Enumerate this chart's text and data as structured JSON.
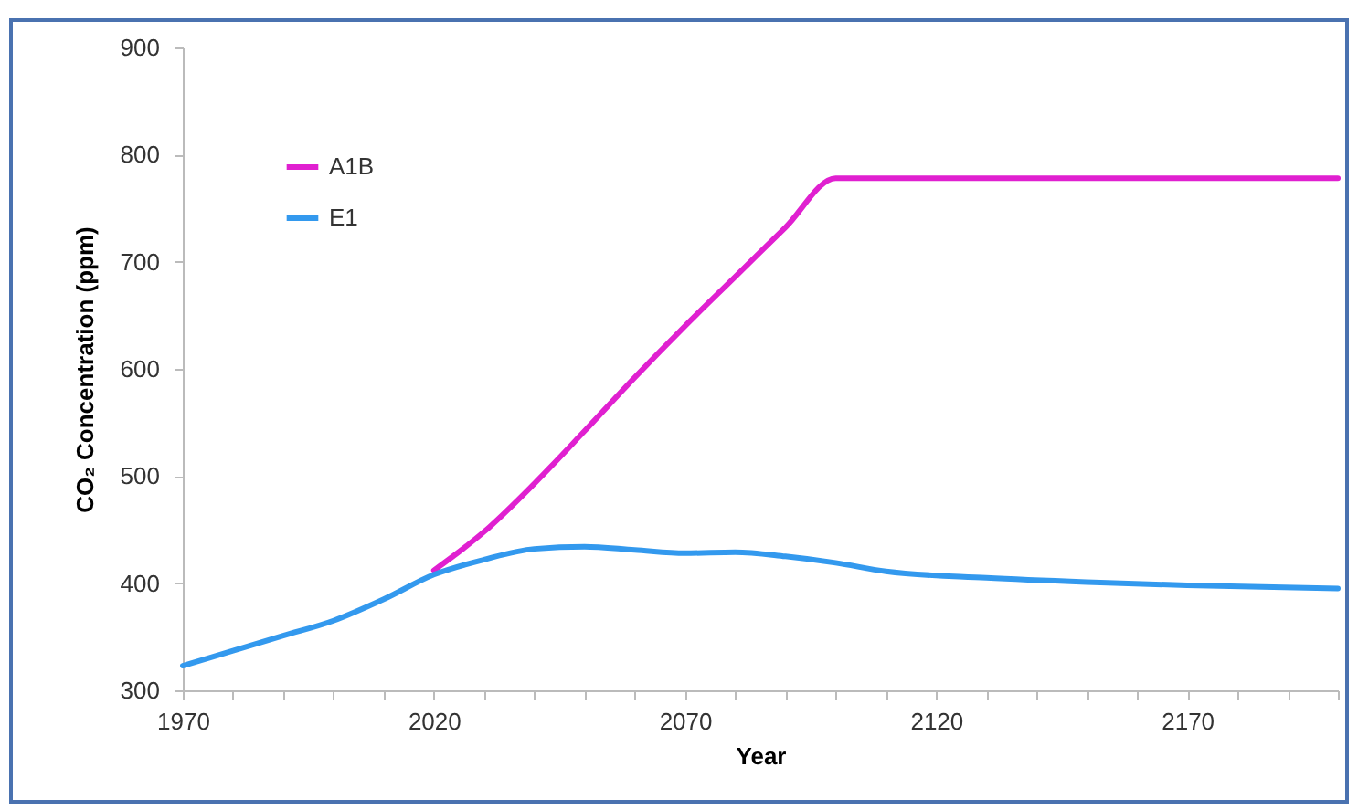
{
  "chart_data": {
    "type": "line",
    "xlabel": "Year",
    "ylabel": "CO₂ Concentration (ppm)",
    "xlim": [
      1970,
      2200
    ],
    "ylim": [
      300,
      900
    ],
    "xticks": [
      1970,
      {
        "value": 1980,
        "label": null
      },
      {
        "value": 1990,
        "label": null
      },
      {
        "value": 2000,
        "label": null
      },
      {
        "value": 2010,
        "label": null
      },
      2020,
      {
        "value": 2030,
        "label": null
      },
      {
        "value": 2040,
        "label": null
      },
      {
        "value": 2050,
        "label": null
      },
      {
        "value": 2060,
        "label": null
      },
      2070,
      {
        "value": 2080,
        "label": null
      },
      {
        "value": 2090,
        "label": null
      },
      {
        "value": 2100,
        "label": null
      },
      {
        "value": 2110,
        "label": null
      },
      2120,
      {
        "value": 2130,
        "label": null
      },
      {
        "value": 2140,
        "label": null
      },
      {
        "value": 2150,
        "label": null
      },
      {
        "value": 2160,
        "label": null
      },
      2170,
      {
        "value": 2180,
        "label": null
      },
      {
        "value": 2190,
        "label": null
      },
      {
        "value": 2200,
        "label": null
      }
    ],
    "yticks": [
      300,
      400,
      500,
      600,
      700,
      800,
      900
    ],
    "legend": "top left",
    "grid": false,
    "marker": "none",
    "line_style": "solid",
    "series": [
      {
        "name": "A1B",
        "color": "#e020d0",
        "x": [
          2020,
          2030,
          2040,
          2050,
          2060,
          2070,
          2080,
          2090,
          2100,
          2200
        ],
        "values": [
          412,
          448,
          493,
          542,
          592,
          640,
          686,
          732,
          778,
          778
        ]
      },
      {
        "name": "E1",
        "color": "#3399ee",
        "x": [
          1970,
          1980,
          1990,
          2000,
          2010,
          2020,
          2030,
          2040,
          2050,
          2060,
          2070,
          2080,
          2090,
          2100,
          2110,
          2130,
          2150,
          2170,
          2200
        ],
        "values": [
          323,
          337,
          351,
          365,
          385,
          408,
          422,
          432,
          434,
          431,
          428,
          429,
          425,
          419,
          411,
          405,
          401,
          398,
          395
        ]
      }
    ]
  }
}
